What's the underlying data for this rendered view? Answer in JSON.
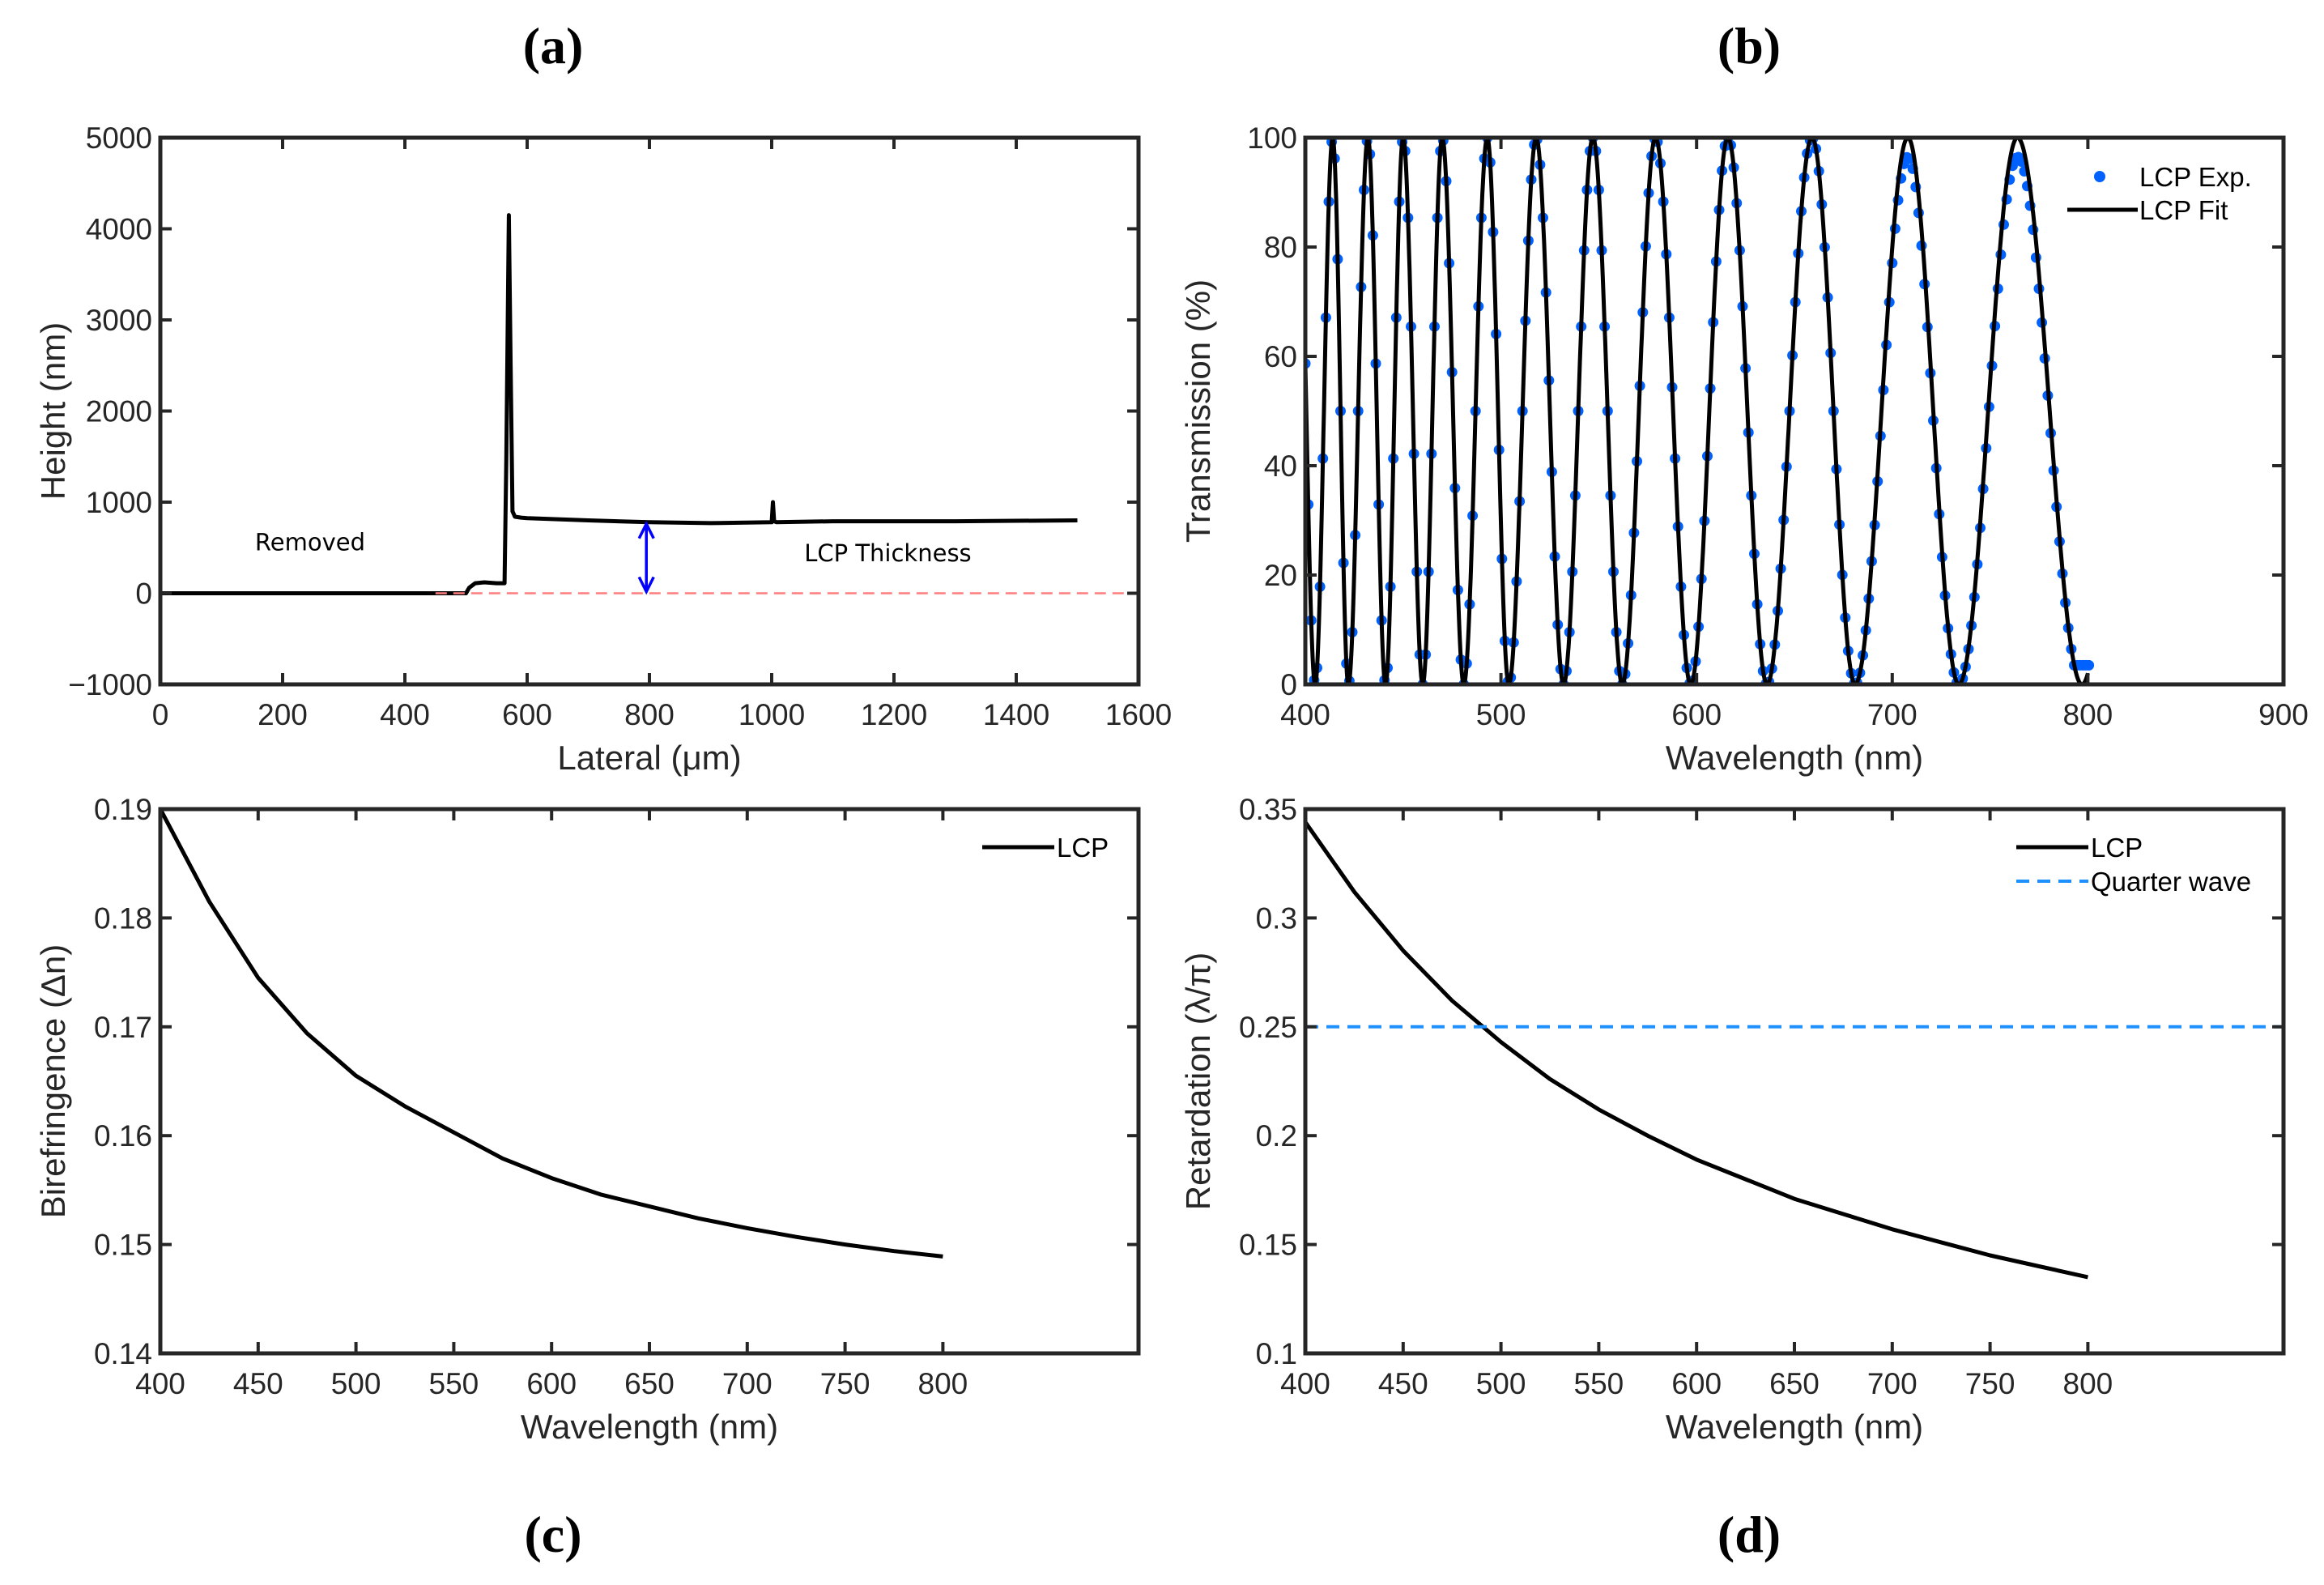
{
  "panel_labels": [
    "(a)",
    "(b)",
    "(c)",
    "(d)"
  ],
  "chart_data": [
    {
      "type": "line",
      "xlabel": "Lateral (μm)",
      "ylabel": "Height (nm)",
      "xlim": [
        0,
        1600
      ],
      "ylim": [
        -1000,
        5000
      ],
      "xticks": [
        "0",
        "200",
        "400",
        "600",
        "800",
        "1000",
        "1200",
        "1400",
        "1600"
      ],
      "yticks": [
        "−1000",
        "0",
        "1000",
        "2000",
        "3000",
        "4000",
        "5000"
      ],
      "xtick_values": [
        0,
        200,
        400,
        600,
        800,
        1000,
        1200,
        1400,
        1600
      ],
      "ytick_values": [
        -1000,
        0,
        1000,
        2000,
        3000,
        4000,
        5000
      ],
      "series": [
        {
          "x": [
            0,
            100,
            200,
            300,
            400,
            450,
            500,
            505,
            515,
            530,
            550,
            563,
            566,
            570,
            573,
            576,
            580,
            590,
            600,
            700,
            800,
            900,
            1000,
            1002,
            1004,
            1008,
            1100,
            1300,
            1500
          ],
          "y": [
            0,
            0,
            0,
            0,
            0,
            0,
            0,
            60,
            110,
            120,
            110,
            110,
            1500,
            4150,
            2500,
            900,
            840,
            830,
            825,
            800,
            780,
            770,
            780,
            1000,
            790,
            780,
            790,
            790,
            800
          ],
          "color": "#000000"
        },
        {
          "x": [
            450,
            1600
          ],
          "y": [
            0,
            0
          ],
          "color": "#ff7f7f",
          "dashed": true
        }
      ],
      "arrow": {
        "x": 795,
        "y_from": 0,
        "y_to": 780,
        "color": "#0000ff"
      },
      "annotations": [
        {
          "text": "Removed",
          "x": 245,
          "y": 470
        },
        {
          "text": "LCP Thickness",
          "x": 1190,
          "y": 350
        }
      ]
    },
    {
      "type": "line+scatter",
      "xlabel": "Wavelength (nm)",
      "ylabel": "Transmission (%)",
      "xlim": [
        400,
        900
      ],
      "ylim": [
        0,
        100
      ],
      "xticks": [
        "400",
        "500",
        "600",
        "700",
        "800",
        "900"
      ],
      "yticks": [
        "0",
        "20",
        "40",
        "60",
        "80",
        "100"
      ],
      "xtick_values": [
        400,
        500,
        600,
        700,
        800,
        900
      ],
      "ytick_values": [
        0,
        20,
        40,
        60,
        80,
        100
      ],
      "fit_minima_nm": [
        405,
        422,
        441,
        460,
        481,
        504,
        532,
        562,
        597,
        636,
        681,
        734,
        797
      ],
      "fit_maxima_nm": [
        414,
        432,
        450,
        470,
        493,
        518,
        547,
        579,
        616,
        659,
        708,
        764
      ],
      "wavelength_range_nm": [
        400,
        801
      ],
      "legend": [
        {
          "name": "LCP Exp.",
          "color": "#0061ff",
          "marker": "dot"
        },
        {
          "name": "LCP Fit",
          "color": "#000000",
          "marker": "line"
        }
      ],
      "legend_position": "top-right"
    },
    {
      "type": "line",
      "xlabel": "Wavelength (nm)",
      "ylabel": "Birefringence (Δn)",
      "xlim": [
        400,
        900
      ],
      "ylim": [
        0.14,
        0.19
      ],
      "xticks": [
        "400",
        "450",
        "500",
        "550",
        "600",
        "650",
        "700",
        "750",
        "800"
      ],
      "yticks": [
        "0.14",
        "0.15",
        "0.16",
        "0.17",
        "0.18",
        "0.19"
      ],
      "xtick_values": [
        400,
        450,
        500,
        550,
        600,
        650,
        700,
        750,
        800
      ],
      "ytick_values": [
        0.14,
        0.15,
        0.16,
        0.17,
        0.18,
        0.19
      ],
      "series": [
        {
          "name": "LCP",
          "color": "#000000",
          "x": [
            400,
            425,
            450,
            475,
            500,
            525,
            550,
            575,
            600,
            625,
            650,
            675,
            700,
            725,
            750,
            775,
            800
          ],
          "y": [
            0.19,
            0.1815,
            0.1745,
            0.1694,
            0.1655,
            0.1627,
            0.1603,
            0.1579,
            0.1561,
            0.1546,
            0.1535,
            0.1524,
            0.1515,
            0.1507,
            0.15,
            0.1494,
            0.1489
          ]
        }
      ],
      "legend_position": "top-right"
    },
    {
      "type": "line",
      "xlabel": "Wavelength (nm)",
      "ylabel": "Retardation (λ/π)",
      "xlim": [
        400,
        900
      ],
      "ylim": [
        0.1,
        0.35
      ],
      "xticks": [
        "400",
        "450",
        "500",
        "550",
        "600",
        "650",
        "700",
        "750",
        "800"
      ],
      "yticks": [
        "0.1",
        "0.15",
        "0.2",
        "0.25",
        "0.3",
        "0.35"
      ],
      "xtick_values": [
        400,
        450,
        500,
        550,
        600,
        650,
        700,
        750,
        800
      ],
      "ytick_values": [
        0.1,
        0.15,
        0.2,
        0.25,
        0.3,
        0.35
      ],
      "series": [
        {
          "name": "LCP",
          "color": "#000000",
          "x": [
            400,
            425,
            450,
            475,
            500,
            525,
            550,
            575,
            600,
            625,
            650,
            675,
            700,
            725,
            750,
            775,
            800
          ],
          "y": [
            0.344,
            0.312,
            0.285,
            0.262,
            0.243,
            0.226,
            0.212,
            0.2,
            0.189,
            0.18,
            0.171,
            0.164,
            0.157,
            0.151,
            0.145,
            0.14,
            0.135
          ]
        },
        {
          "name": "Quarter wave",
          "color": "#1e90ff",
          "dashed": true,
          "x": [
            400,
            900
          ],
          "y": [
            0.25,
            0.25
          ]
        }
      ],
      "legend_position": "top-right"
    }
  ]
}
